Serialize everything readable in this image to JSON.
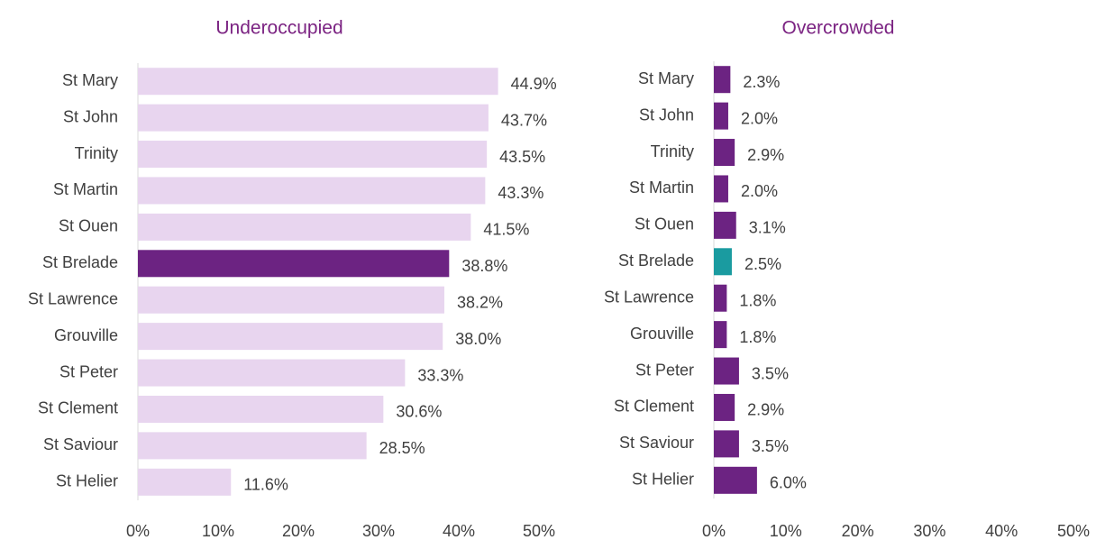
{
  "chart_data": [
    {
      "type": "bar",
      "orientation": "horizontal",
      "title": "Underoccupied",
      "categories": [
        "St Mary",
        "St John",
        "Trinity",
        "St Martin",
        "St Ouen",
        "St Brelade",
        "St Lawrence",
        "Grouville",
        "St Peter",
        "St Clement",
        "St Saviour",
        "St Helier"
      ],
      "values": [
        44.9,
        43.7,
        43.5,
        43.3,
        41.5,
        38.8,
        38.2,
        38.0,
        33.3,
        30.6,
        28.5,
        11.6
      ],
      "value_labels": [
        "44.9%",
        "43.7%",
        "43.5%",
        "43.3%",
        "41.5%",
        "38.8%",
        "38.2%",
        "38.0%",
        "33.3%",
        "30.6%",
        "28.5%",
        "11.6%"
      ],
      "colors": [
        "#E8D5EF",
        "#E8D5EF",
        "#E8D5EF",
        "#E8D5EF",
        "#E8D5EF",
        "#6C2382",
        "#E8D5EF",
        "#E8D5EF",
        "#E8D5EF",
        "#E8D5EF",
        "#E8D5EF",
        "#E8D5EF"
      ],
      "xlim": [
        0,
        50
      ],
      "xticks": [
        {
          "value": 0,
          "label": "0%"
        },
        {
          "value": 10,
          "label": "10%"
        },
        {
          "value": 20,
          "label": "20%"
        },
        {
          "value": 30,
          "label": "30%"
        },
        {
          "value": 40,
          "label": "40%"
        },
        {
          "value": 50,
          "label": "50%"
        }
      ],
      "grid": false
    },
    {
      "type": "bar",
      "orientation": "horizontal",
      "title": "Overcrowded",
      "categories": [
        "St Mary",
        "St John",
        "Trinity",
        "St Martin",
        "St Ouen",
        "St Brelade",
        "St Lawrence",
        "Grouville",
        "St Peter",
        "St Clement",
        "St Saviour",
        "St Helier"
      ],
      "values": [
        2.3,
        2.0,
        2.9,
        2.0,
        3.1,
        2.5,
        1.8,
        1.8,
        3.5,
        2.9,
        3.5,
        6.0
      ],
      "value_labels": [
        "2.3%",
        "2.0%",
        "2.9%",
        "2.0%",
        "3.1%",
        "2.5%",
        "1.8%",
        "1.8%",
        "3.5%",
        "2.9%",
        "3.5%",
        "6.0%"
      ],
      "colors": [
        "#6C2382",
        "#6C2382",
        "#6C2382",
        "#6C2382",
        "#6C2382",
        "#1A9BA0",
        "#6C2382",
        "#6C2382",
        "#6C2382",
        "#6C2382",
        "#6C2382",
        "#6C2382"
      ],
      "xlim": [
        0,
        50
      ],
      "xticks": [
        {
          "value": 0,
          "label": "0%"
        },
        {
          "value": 10,
          "label": "10%"
        },
        {
          "value": 20,
          "label": "20%"
        },
        {
          "value": 30,
          "label": "30%"
        },
        {
          "value": 40,
          "label": "40%"
        },
        {
          "value": 50,
          "label": "50%"
        }
      ],
      "grid": false
    }
  ]
}
